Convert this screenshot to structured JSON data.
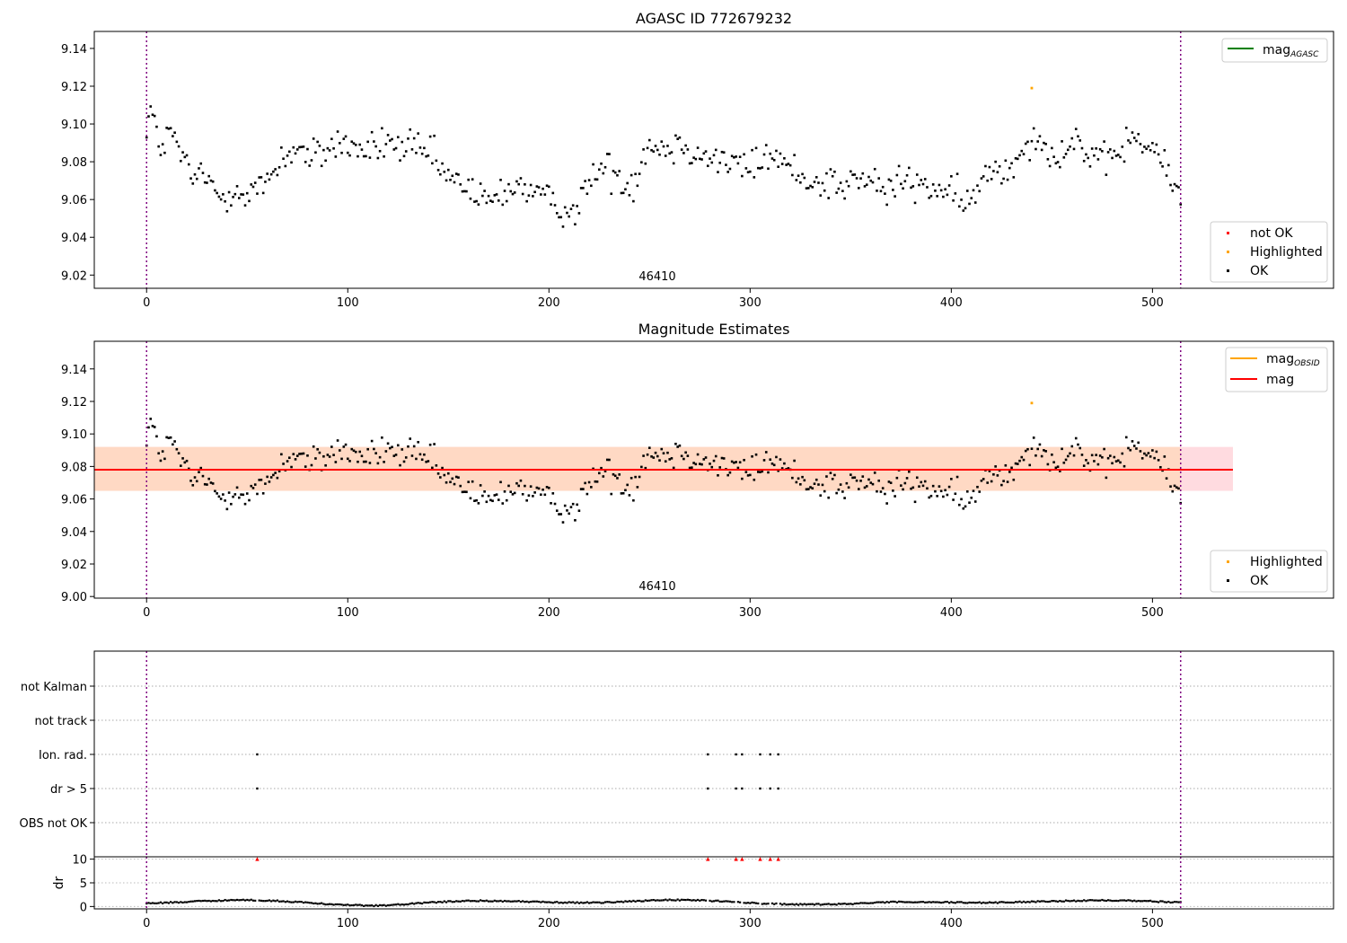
{
  "chart_data": [
    {
      "type": "scatter",
      "title": "AGASC ID 772679232",
      "annotation": "46410",
      "xlim": [
        -26,
        590
      ],
      "ylim": [
        9.013,
        9.149
      ],
      "xticks": [
        0,
        100,
        200,
        300,
        400,
        500
      ],
      "yticks": [
        9.02,
        9.04,
        9.06,
        9.08,
        9.1,
        9.12,
        9.14
      ],
      "vlines": [
        0,
        514
      ],
      "legend_top": {
        "position": "upper right",
        "entries": [
          {
            "main": "mag",
            "sub": "AGASC",
            "color": "#008000"
          }
        ]
      },
      "legend_bottom": {
        "position": "lower right",
        "entries": [
          {
            "label": "not OK",
            "color": "#ff0000"
          },
          {
            "label": "Highlighted",
            "color": "#ffa500"
          },
          {
            "label": "OK",
            "color": "#000000"
          }
        ]
      },
      "highlighted": [
        {
          "x": 440,
          "y": 9.119
        }
      ],
      "anchors": [
        [
          0,
          9.099
        ],
        [
          2,
          9.108
        ],
        [
          5,
          9.094
        ],
        [
          8,
          9.087
        ],
        [
          12,
          9.096
        ],
        [
          18,
          9.082
        ],
        [
          22,
          9.07
        ],
        [
          27,
          9.075
        ],
        [
          31,
          9.068
        ],
        [
          35,
          9.063
        ],
        [
          40,
          9.061
        ],
        [
          45,
          9.07
        ],
        [
          49,
          9.058
        ],
        [
          53,
          9.066
        ],
        [
          57,
          9.065
        ],
        [
          62,
          9.074
        ],
        [
          66,
          9.08
        ],
        [
          71,
          9.085
        ],
        [
          76,
          9.088
        ],
        [
          80,
          9.081
        ],
        [
          86,
          9.084
        ],
        [
          92,
          9.088
        ],
        [
          98,
          9.09
        ],
        [
          104,
          9.087
        ],
        [
          110,
          9.085
        ],
        [
          115,
          9.088
        ],
        [
          121,
          9.091
        ],
        [
          126,
          9.086
        ],
        [
          131,
          9.089
        ],
        [
          136,
          9.083
        ],
        [
          141,
          9.085
        ],
        [
          146,
          9.076
        ],
        [
          151,
          9.07
        ],
        [
          156,
          9.068
        ],
        [
          161,
          9.066
        ],
        [
          166,
          9.06
        ],
        [
          171,
          9.058
        ],
        [
          176,
          9.063
        ],
        [
          182,
          9.068
        ],
        [
          187,
          9.066
        ],
        [
          192,
          9.064
        ],
        [
          197,
          9.061
        ],
        [
          202,
          9.057
        ],
        [
          207,
          9.055
        ],
        [
          212,
          9.054
        ],
        [
          217,
          9.062
        ],
        [
          222,
          9.072
        ],
        [
          227,
          9.078
        ],
        [
          232,
          9.074
        ],
        [
          237,
          9.07
        ],
        [
          242,
          9.068
        ],
        [
          247,
          9.085
        ],
        [
          252,
          9.09
        ],
        [
          257,
          9.087
        ],
        [
          262,
          9.088
        ],
        [
          267,
          9.09
        ],
        [
          272,
          9.086
        ],
        [
          277,
          9.083
        ],
        [
          282,
          9.082
        ],
        [
          287,
          9.08
        ],
        [
          292,
          9.079
        ],
        [
          297,
          9.077
        ],
        [
          302,
          9.078
        ],
        [
          307,
          9.082
        ],
        [
          312,
          9.084
        ],
        [
          317,
          9.078
        ],
        [
          322,
          9.075
        ],
        [
          327,
          9.07
        ],
        [
          332,
          9.072
        ],
        [
          337,
          9.068
        ],
        [
          342,
          9.07
        ],
        [
          347,
          9.066
        ],
        [
          352,
          9.072
        ],
        [
          357,
          9.068
        ],
        [
          362,
          9.07
        ],
        [
          367,
          9.064
        ],
        [
          372,
          9.067
        ],
        [
          377,
          9.07
        ],
        [
          382,
          9.068
        ],
        [
          387,
          9.067
        ],
        [
          392,
          9.066
        ],
        [
          397,
          9.065
        ],
        [
          402,
          9.06
        ],
        [
          407,
          9.058
        ],
        [
          412,
          9.062
        ],
        [
          417,
          9.072
        ],
        [
          422,
          9.078
        ],
        [
          427,
          9.075
        ],
        [
          432,
          9.08
        ],
        [
          437,
          9.092
        ],
        [
          442,
          9.094
        ],
        [
          447,
          9.086
        ],
        [
          452,
          9.084
        ],
        [
          457,
          9.088
        ],
        [
          462,
          9.092
        ],
        [
          467,
          9.085
        ],
        [
          472,
          9.08
        ],
        [
          477,
          9.078
        ],
        [
          482,
          9.085
        ],
        [
          487,
          9.09
        ],
        [
          492,
          9.092
        ],
        [
          497,
          9.088
        ],
        [
          502,
          9.085
        ],
        [
          507,
          9.075
        ],
        [
          511,
          9.066
        ],
        [
          514,
          9.062
        ]
      ]
    },
    {
      "type": "scatter",
      "title": "Magnitude Estimates",
      "annotation": "46410",
      "xlim": [
        -26,
        590
      ],
      "ylim": [
        8.999,
        9.157
      ],
      "xticks": [
        0,
        100,
        200,
        300,
        400,
        500
      ],
      "yticks": [
        9.0,
        9.02,
        9.04,
        9.06,
        9.08,
        9.1,
        9.12,
        9.14
      ],
      "vlines": [
        0,
        514
      ],
      "mag_line": {
        "y": 9.078,
        "x": [
          -26,
          540
        ],
        "color": "#ff0000"
      },
      "band_outer": {
        "y": [
          9.065,
          9.092
        ],
        "x": [
          -26,
          540
        ],
        "color": "#ffdbe0"
      },
      "band_inner": {
        "y": [
          9.065,
          9.092
        ],
        "x": [
          -26,
          514
        ],
        "color": "#ffd9c4"
      },
      "legend_top": {
        "position": "upper right",
        "entries": [
          {
            "main": "mag",
            "sub": "OBSID",
            "color": "#ffa500"
          },
          {
            "main": "mag",
            "sub": "",
            "color": "#ff0000"
          }
        ]
      },
      "legend_bottom": {
        "position": "lower right",
        "entries": [
          {
            "label": "Highlighted",
            "color": "#ffa500"
          },
          {
            "label": "OK",
            "color": "#000000"
          }
        ]
      },
      "highlighted": [
        {
          "x": 440,
          "y": 9.119
        }
      ]
    },
    {
      "type": "scatter",
      "title": "",
      "xlim": [
        -26,
        590
      ],
      "xticks": [
        0,
        100,
        200,
        300,
        400,
        500
      ],
      "vlines": [
        0,
        514
      ],
      "flag_categories": [
        "OBS not OK",
        "dr > 5",
        "Ion. rad.",
        "not track",
        "not Kalman"
      ],
      "flag_events": {
        "dr > 5": [
          55,
          279,
          293,
          296,
          305,
          310,
          314
        ],
        "Ion. rad.": [
          55,
          279,
          293,
          296,
          305,
          310,
          314
        ]
      }
    },
    {
      "type": "scatter",
      "title": "",
      "ylabel": "dr",
      "xlim": [
        -26,
        590
      ],
      "ylim": [
        -0.5,
        10.5
      ],
      "xticks": [
        0,
        100,
        200,
        300,
        400,
        500
      ],
      "yticks": [
        0,
        5,
        10
      ],
      "vlines": [
        0,
        514
      ],
      "dr_outliers_x": [
        55,
        279,
        293,
        296,
        305,
        310,
        314
      ],
      "dr_outlier_y": 10
    }
  ]
}
